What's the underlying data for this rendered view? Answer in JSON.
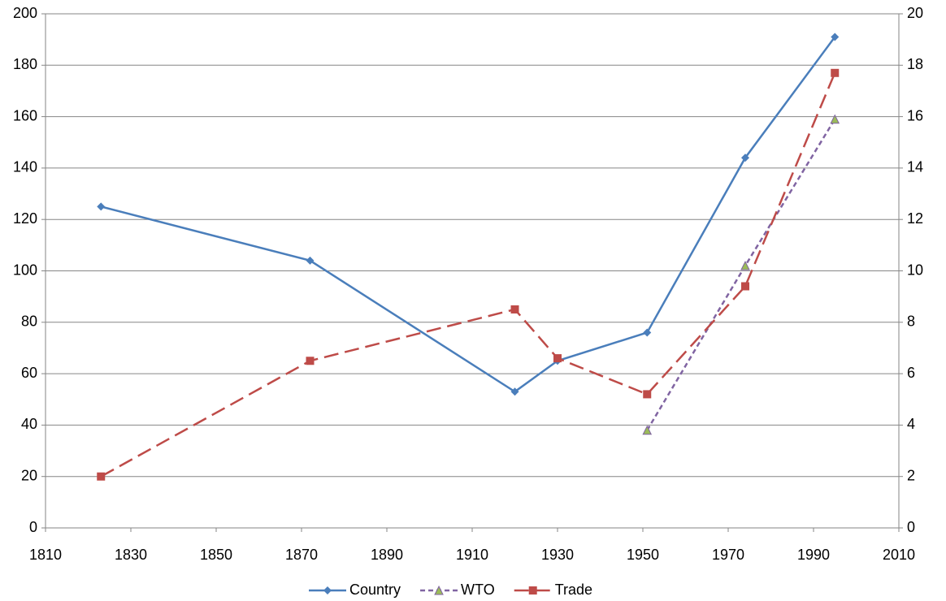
{
  "chart_data": {
    "type": "line",
    "x": [
      1823,
      1872,
      1920,
      1930,
      1951,
      1974,
      1995
    ],
    "series": [
      {
        "name": "Country",
        "color": "#4a7ebb",
        "dash": "solid",
        "marker": "diamond",
        "axis": "y",
        "values": [
          125,
          104,
          53,
          65,
          76,
          144,
          191
        ]
      },
      {
        "name": "WTO",
        "color": "#8064a2",
        "marker_color": "#9bbb59",
        "dash": "short",
        "marker": "triangle",
        "axis": "y",
        "values": [
          null,
          null,
          null,
          null,
          38,
          102,
          159
        ]
      },
      {
        "name": "Trade",
        "color": "#be4b48",
        "dash": "long",
        "marker": "square",
        "axis": "y2",
        "values": [
          2.0,
          6.5,
          8.5,
          6.6,
          5.2,
          9.4,
          17.7
        ]
      }
    ],
    "xlim": [
      1810,
      2010
    ],
    "xticks": [
      1810,
      1830,
      1850,
      1870,
      1890,
      1910,
      1930,
      1950,
      1970,
      1990,
      2010
    ],
    "ylim": [
      0,
      200
    ],
    "yticks": [
      0,
      20,
      40,
      60,
      80,
      100,
      120,
      140,
      160,
      180,
      200
    ],
    "y2lim": [
      0,
      20
    ],
    "y2ticks": [
      0,
      2,
      4,
      6,
      8,
      10,
      12,
      14,
      16,
      18,
      20
    ],
    "grid": true,
    "legend": "bottom"
  }
}
